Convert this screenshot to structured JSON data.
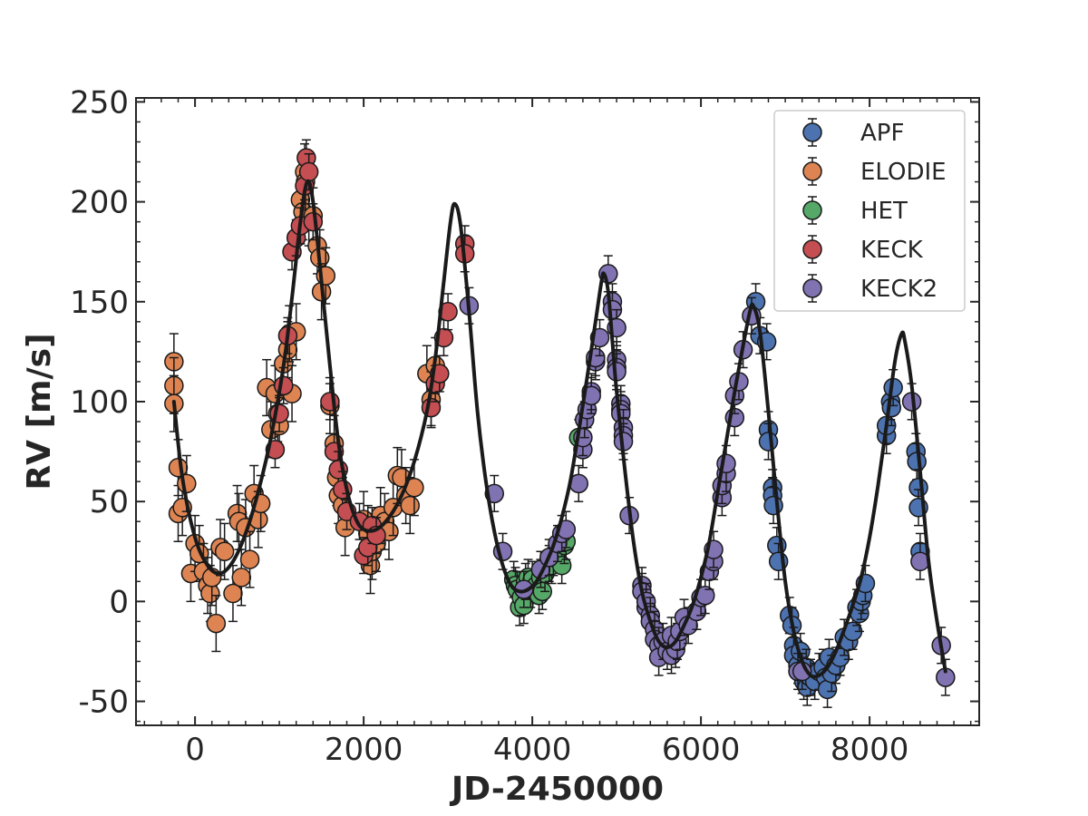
{
  "chart_data": {
    "type": "scatter",
    "xlabel": "JD-2450000",
    "ylabel": "RV [m/s]",
    "xlim": [
      -700,
      9300
    ],
    "ylim": [
      -62,
      252
    ],
    "xticks": [
      0,
      2000,
      4000,
      6000,
      8000
    ],
    "xtick_labels": [
      "0",
      "2000",
      "4000",
      "6000",
      "8000"
    ],
    "yticks": [
      -50,
      0,
      50,
      100,
      150,
      200,
      250
    ],
    "ytick_labels": [
      "-50",
      "0",
      "50",
      "100",
      "150",
      "200",
      "250"
    ],
    "grid": false,
    "legend_position": "top-right",
    "model_curve": {
      "color": "#1a1a1a",
      "points": [
        [
          -250,
          100
        ],
        [
          -150,
          62
        ],
        [
          0,
          32
        ],
        [
          150,
          18
        ],
        [
          300,
          14
        ],
        [
          450,
          20
        ],
        [
          600,
          34
        ],
        [
          750,
          55
        ],
        [
          900,
          82
        ],
        [
          1050,
          118
        ],
        [
          1150,
          152
        ],
        [
          1250,
          190
        ],
        [
          1330,
          210
        ],
        [
          1400,
          200
        ],
        [
          1500,
          160
        ],
        [
          1600,
          118
        ],
        [
          1700,
          80
        ],
        [
          1800,
          56
        ],
        [
          1900,
          42
        ],
        [
          2000,
          36
        ],
        [
          2150,
          36
        ],
        [
          2300,
          42
        ],
        [
          2450,
          53
        ],
        [
          2600,
          70
        ],
        [
          2750,
          95
        ],
        [
          2850,
          122
        ],
        [
          2950,
          160
        ],
        [
          3030,
          190
        ],
        [
          3080,
          199
        ],
        [
          3150,
          188
        ],
        [
          3250,
          145
        ],
        [
          3350,
          95
        ],
        [
          3450,
          60
        ],
        [
          3550,
          35
        ],
        [
          3650,
          18
        ],
        [
          3750,
          8
        ],
        [
          3850,
          5
        ],
        [
          3950,
          6
        ],
        [
          4050,
          10
        ],
        [
          4150,
          18
        ],
        [
          4250,
          28
        ],
        [
          4350,
          42
        ],
        [
          4450,
          60
        ],
        [
          4550,
          85
        ],
        [
          4650,
          112
        ],
        [
          4750,
          140
        ],
        [
          4820,
          160
        ],
        [
          4850,
          164
        ],
        [
          4900,
          155
        ],
        [
          4950,
          130
        ],
        [
          5000,
          105
        ],
        [
          5100,
          65
        ],
        [
          5200,
          30
        ],
        [
          5300,
          5
        ],
        [
          5400,
          -10
        ],
        [
          5500,
          -20
        ],
        [
          5600,
          -23
        ],
        [
          5700,
          -20
        ],
        [
          5800,
          -12
        ],
        [
          5900,
          -2
        ],
        [
          6000,
          12
        ],
        [
          6100,
          30
        ],
        [
          6200,
          55
        ],
        [
          6300,
          80
        ],
        [
          6400,
          105
        ],
        [
          6500,
          128
        ],
        [
          6580,
          145
        ],
        [
          6620,
          148
        ],
        [
          6700,
          135
        ],
        [
          6800,
          95
        ],
        [
          6900,
          50
        ],
        [
          7000,
          10
        ],
        [
          7100,
          -15
        ],
        [
          7200,
          -30
        ],
        [
          7300,
          -37
        ],
        [
          7400,
          -37
        ],
        [
          7500,
          -33
        ],
        [
          7600,
          -25
        ],
        [
          7700,
          -14
        ],
        [
          7800,
          -2
        ],
        [
          7900,
          12
        ],
        [
          8000,
          32
        ],
        [
          8100,
          58
        ],
        [
          8200,
          88
        ],
        [
          8300,
          120
        ],
        [
          8380,
          134
        ],
        [
          8420,
          130
        ],
        [
          8500,
          108
        ],
        [
          8600,
          65
        ],
        [
          8700,
          20
        ],
        [
          8800,
          -10
        ],
        [
          8900,
          -35
        ]
      ]
    },
    "series": [
      {
        "name": "APF",
        "color": "#4c72b0",
        "points": [
          [
            6650,
            150
          ],
          [
            6700,
            133
          ],
          [
            6780,
            130
          ],
          [
            6800,
            86
          ],
          [
            6800,
            80
          ],
          [
            6850,
            57
          ],
          [
            6850,
            53
          ],
          [
            6860,
            48
          ],
          [
            6900,
            28
          ],
          [
            6920,
            20
          ],
          [
            7050,
            -7
          ],
          [
            7080,
            -12
          ],
          [
            7100,
            -22
          ],
          [
            7100,
            -27
          ],
          [
            7150,
            -32
          ],
          [
            7180,
            -25
          ],
          [
            7200,
            -37
          ],
          [
            7220,
            -40
          ],
          [
            7250,
            -33
          ],
          [
            7260,
            -43
          ],
          [
            7300,
            -38
          ],
          [
            7350,
            -40
          ],
          [
            7400,
            -35
          ],
          [
            7450,
            -33
          ],
          [
            7480,
            -38
          ],
          [
            7500,
            -44
          ],
          [
            7520,
            -28
          ],
          [
            7550,
            -36
          ],
          [
            7600,
            -32
          ],
          [
            7650,
            -28
          ],
          [
            7700,
            -18
          ],
          [
            7750,
            -20
          ],
          [
            7800,
            -15
          ],
          [
            7850,
            -3
          ],
          [
            7880,
            -6
          ],
          [
            7900,
            0
          ],
          [
            7920,
            3
          ],
          [
            7950,
            9
          ],
          [
            8200,
            83
          ],
          [
            8200,
            88
          ],
          [
            8250,
            100
          ],
          [
            8260,
            97
          ],
          [
            8280,
            107
          ],
          [
            8550,
            75
          ],
          [
            8560,
            70
          ],
          [
            8580,
            57
          ],
          [
            8580,
            47
          ],
          [
            8600,
            25
          ]
        ]
      },
      {
        "name": "ELODIE",
        "color": "#dd8452",
        "points": [
          [
            -250,
            120
          ],
          [
            -250,
            108
          ],
          [
            -250,
            99
          ],
          [
            -200,
            67
          ],
          [
            -200,
            44
          ],
          [
            -150,
            47
          ],
          [
            -100,
            59
          ],
          [
            -50,
            14
          ],
          [
            0,
            29
          ],
          [
            50,
            24
          ],
          [
            100,
            15
          ],
          [
            150,
            8
          ],
          [
            180,
            4
          ],
          [
            200,
            12
          ],
          [
            250,
            -11
          ],
          [
            300,
            27
          ],
          [
            350,
            25
          ],
          [
            450,
            4
          ],
          [
            500,
            44
          ],
          [
            520,
            40
          ],
          [
            550,
            12
          ],
          [
            600,
            37
          ],
          [
            650,
            21
          ],
          [
            700,
            54
          ],
          [
            750,
            41
          ],
          [
            780,
            49
          ],
          [
            850,
            107
          ],
          [
            900,
            86
          ],
          [
            950,
            104
          ],
          [
            980,
            94
          ],
          [
            1000,
            88
          ],
          [
            1050,
            119
          ],
          [
            1100,
            126
          ],
          [
            1120,
            134
          ],
          [
            1150,
            104
          ],
          [
            1200,
            135
          ],
          [
            1250,
            201
          ],
          [
            1280,
            195
          ],
          [
            1300,
            215
          ],
          [
            1310,
            210
          ],
          [
            1350,
            192
          ],
          [
            1400,
            193
          ],
          [
            1450,
            178
          ],
          [
            1480,
            172
          ],
          [
            1500,
            155
          ],
          [
            1550,
            163
          ],
          [
            1600,
            98
          ],
          [
            1650,
            79
          ],
          [
            1680,
            62
          ],
          [
            1700,
            53
          ],
          [
            1750,
            48
          ],
          [
            1780,
            37
          ],
          [
            2000,
            41
          ],
          [
            2050,
            34
          ],
          [
            2080,
            18
          ],
          [
            2100,
            25
          ],
          [
            2150,
            29
          ],
          [
            2200,
            43
          ],
          [
            2250,
            40
          ],
          [
            2300,
            35
          ],
          [
            2350,
            47
          ],
          [
            2400,
            63
          ],
          [
            2450,
            62
          ],
          [
            2500,
            53
          ],
          [
            2550,
            48
          ],
          [
            2600,
            57
          ],
          [
            2750,
            114
          ],
          [
            2800,
            101
          ],
          [
            2850,
            118
          ]
        ]
      },
      {
        "name": "HET",
        "color": "#55a868",
        "points": [
          [
            3780,
            11
          ],
          [
            3800,
            8
          ],
          [
            3820,
            6
          ],
          [
            3850,
            -3
          ],
          [
            3870,
            2
          ],
          [
            3900,
            -2
          ],
          [
            3920,
            10
          ],
          [
            3950,
            12
          ],
          [
            3980,
            6
          ],
          [
            4000,
            11
          ],
          [
            4050,
            8
          ],
          [
            4080,
            3
          ],
          [
            4100,
            12
          ],
          [
            4120,
            5
          ],
          [
            4150,
            14
          ],
          [
            4200,
            19
          ],
          [
            4230,
            18
          ],
          [
            4250,
            22
          ],
          [
            4300,
            25
          ],
          [
            4350,
            18
          ],
          [
            4380,
            28
          ],
          [
            4400,
            30
          ],
          [
            4550,
            82
          ]
        ]
      },
      {
        "name": "KECK",
        "color": "#c44e52",
        "points": [
          [
            950,
            76
          ],
          [
            1000,
            94
          ],
          [
            1050,
            108
          ],
          [
            1100,
            133
          ],
          [
            1150,
            175
          ],
          [
            1200,
            182
          ],
          [
            1250,
            188
          ],
          [
            1300,
            208
          ],
          [
            1320,
            222
          ],
          [
            1350,
            215
          ],
          [
            1400,
            190
          ],
          [
            1600,
            100
          ],
          [
            1650,
            75
          ],
          [
            1700,
            66
          ],
          [
            1750,
            56
          ],
          [
            1800,
            45
          ],
          [
            1950,
            40
          ],
          [
            2000,
            23
          ],
          [
            2050,
            27
          ],
          [
            2100,
            38
          ],
          [
            2150,
            33
          ],
          [
            2800,
            97
          ],
          [
            2850,
            109
          ],
          [
            2900,
            114
          ],
          [
            2950,
            132
          ],
          [
            3000,
            145
          ],
          [
            3200,
            179
          ],
          [
            3200,
            174
          ]
        ]
      },
      {
        "name": "KECK2",
        "color": "#8172b2",
        "points": [
          [
            3250,
            148
          ],
          [
            3550,
            54
          ],
          [
            3650,
            25
          ],
          [
            3900,
            6
          ],
          [
            4100,
            16
          ],
          [
            4200,
            22
          ],
          [
            4300,
            29
          ],
          [
            4350,
            34
          ],
          [
            4400,
            36
          ],
          [
            4550,
            59
          ],
          [
            4600,
            76
          ],
          [
            4600,
            82
          ],
          [
            4620,
            91
          ],
          [
            4650,
            96
          ],
          [
            4700,
            105
          ],
          [
            4700,
            103
          ],
          [
            4750,
            120
          ],
          [
            4750,
            122
          ],
          [
            4800,
            132
          ],
          [
            4900,
            164
          ],
          [
            4950,
            150
          ],
          [
            4950,
            146
          ],
          [
            5000,
            137
          ],
          [
            5000,
            121
          ],
          [
            5000,
            117
          ],
          [
            5000,
            115
          ],
          [
            5050,
            99
          ],
          [
            5050,
            96
          ],
          [
            5050,
            94
          ],
          [
            5080,
            87
          ],
          [
            5080,
            83
          ],
          [
            5080,
            80
          ],
          [
            5150,
            43
          ],
          [
            5300,
            8
          ],
          [
            5300,
            5
          ],
          [
            5350,
            -3
          ],
          [
            5350,
            0
          ],
          [
            5400,
            -7
          ],
          [
            5400,
            -10
          ],
          [
            5450,
            -14
          ],
          [
            5450,
            -19
          ],
          [
            5500,
            -22
          ],
          [
            5500,
            -28
          ],
          [
            5550,
            -20
          ],
          [
            5600,
            -25
          ],
          [
            5650,
            -27
          ],
          [
            5650,
            -17
          ],
          [
            5700,
            -24
          ],
          [
            5720,
            -20
          ],
          [
            5750,
            -15
          ],
          [
            5800,
            -8
          ],
          [
            5850,
            -12
          ],
          [
            5950,
            -5
          ],
          [
            6000,
            2
          ],
          [
            6050,
            3
          ],
          [
            6100,
            15
          ],
          [
            6150,
            20
          ],
          [
            6150,
            26
          ],
          [
            6250,
            52
          ],
          [
            6250,
            58
          ],
          [
            6300,
            64
          ],
          [
            6300,
            69
          ],
          [
            6400,
            92
          ],
          [
            6400,
            103
          ],
          [
            6450,
            110
          ],
          [
            6500,
            126
          ],
          [
            6600,
            143
          ],
          [
            7150,
            -35
          ],
          [
            7200,
            -35
          ],
          [
            8500,
            100
          ],
          [
            8600,
            20
          ],
          [
            8850,
            -22
          ],
          [
            8900,
            -38
          ]
        ]
      }
    ]
  }
}
